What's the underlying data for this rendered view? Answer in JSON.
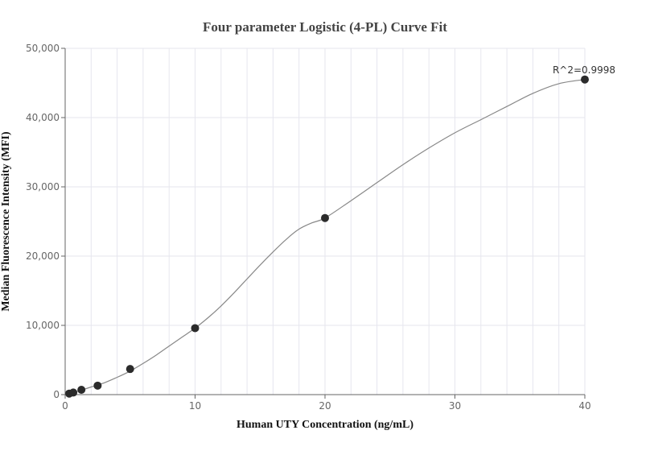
{
  "chart_data": {
    "type": "scatter",
    "title": "Four parameter Logistic (4-PL) Curve Fit",
    "xlabel": "Human UTY Concentration (ng/mL)",
    "ylabel": "Median Fluorescence Intensity (MFI)",
    "xlim": [
      0,
      40
    ],
    "ylim": [
      0,
      50000
    ],
    "x_ticks": [
      0,
      10,
      20,
      30,
      40
    ],
    "x_tick_labels": [
      "0",
      "10",
      "20",
      "30",
      "40"
    ],
    "y_ticks": [
      0,
      10000,
      20000,
      30000,
      40000,
      50000
    ],
    "y_tick_labels": [
      "0",
      "10,000",
      "20,000",
      "30,000",
      "40,000",
      "50,000"
    ],
    "grid": true,
    "points": {
      "x": [
        0.3125,
        0.625,
        1.25,
        2.5,
        5,
        10,
        20,
        40
      ],
      "y": [
        150,
        300,
        700,
        1300,
        3700,
        9600,
        25500,
        45500
      ]
    },
    "fit_curve": {
      "x": [
        0,
        1,
        2,
        3,
        4,
        5,
        6,
        7,
        8,
        9,
        10,
        11,
        12,
        13,
        14,
        15,
        16,
        17,
        18,
        19,
        20,
        22,
        24,
        26,
        28,
        30,
        32,
        34,
        36,
        38,
        40
      ],
      "y": [
        0,
        500,
        1100,
        1700,
        2500,
        3400,
        4500,
        5700,
        7000,
        8300,
        9600,
        11100,
        12800,
        14700,
        16700,
        18700,
        20600,
        22400,
        23900,
        24800,
        25500,
        28000,
        30600,
        33200,
        35600,
        37800,
        39700,
        41600,
        43500,
        44900,
        45500
      ]
    },
    "annotation": "R^2=0.9998",
    "colors": {
      "points": "#2b2b2b",
      "curve": "#888888",
      "grid": "#e6e6ee",
      "axis": "#666666"
    }
  }
}
